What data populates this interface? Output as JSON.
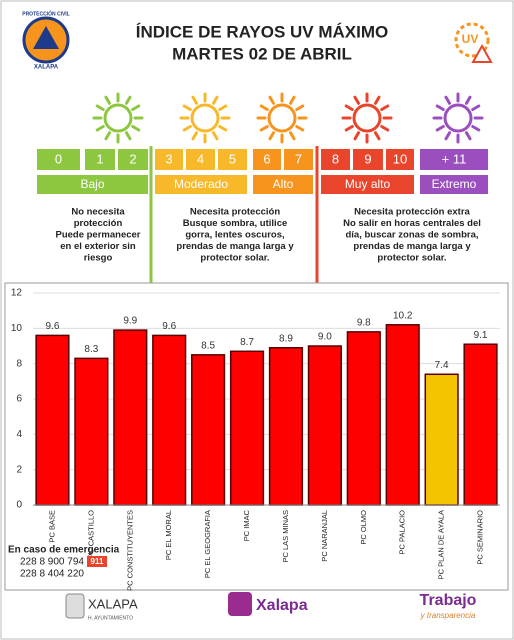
{
  "header": {
    "logo_top": "PROTECCIÓN CIVIL",
    "logo_bottom": "XALAPA",
    "title": "ÍNDICE DE RAYOS UV MÁXIMO",
    "subtitle": "MARTES 02 DE ABRIL",
    "badge": "UV"
  },
  "scale": {
    "levels": [
      {
        "name": "Bajo",
        "color": "#8dc63f",
        "steps": [
          "0",
          "1",
          "2"
        ]
      },
      {
        "name": "Moderado",
        "color": "#f7b82a",
        "steps": [
          "3",
          "4",
          "5"
        ]
      },
      {
        "name": "Alto",
        "color": "#f7941d",
        "steps": [
          "6",
          "7"
        ]
      },
      {
        "name": "Muy alto",
        "color": "#e8452c",
        "steps": [
          "8",
          "9",
          "10"
        ]
      },
      {
        "name": "Extremo",
        "color": "#9b4fbf",
        "steps": [
          "+ 11"
        ]
      }
    ]
  },
  "advice": [
    [
      "No necesita",
      "protección",
      "Puede permanecer",
      "en el exterior sin",
      "riesgo"
    ],
    [
      "Necesita protección",
      "Busque sombra, utilice",
      "gorra, lentes oscuros,",
      "prendas de manga larga y",
      "protector solar."
    ],
    [
      "Necesita protección extra",
      "No salir en horas centrales del",
      "día, buscar zonas de sombra,",
      "prendas de manga larga y",
      "protector solar."
    ]
  ],
  "chart_data": {
    "type": "bar",
    "categories": [
      "PC BASE",
      "PC CASTILLO",
      "PC CONSTITUYENTES",
      "PC EL MORAL",
      "PC EL GEOGRAFIA",
      "PC IMAC",
      "PC LAS MINAS",
      "PC NARANJAL",
      "PC OLMO",
      "PC PALACIO",
      "PC PLAN DE AYALA",
      "PC SEMINARIO"
    ],
    "values": [
      9.6,
      8.3,
      9.9,
      9.6,
      8.5,
      8.7,
      8.9,
      9.0,
      9.8,
      10.2,
      7.4,
      9.1
    ],
    "value_labels": [
      "9.6",
      "8.3",
      "9.9",
      "9.6",
      "8.5",
      "8.7",
      "8.9",
      "9.0",
      "9.8",
      "10.2",
      "7.4",
      "9.1"
    ],
    "colors": [
      "#ff0000",
      "#ff0000",
      "#ff0000",
      "#ff0000",
      "#ff0000",
      "#ff0000",
      "#ff0000",
      "#ff0000",
      "#ff0000",
      "#ff0000",
      "#f5c400",
      "#ff0000"
    ],
    "ylim": [
      0,
      12
    ],
    "yticks": [
      0,
      2,
      4,
      6,
      8,
      10,
      12
    ],
    "grid": true
  },
  "emergency": {
    "title": "En caso de emergencia",
    "phones": [
      "228 8 900 794",
      "228 8 404 220"
    ],
    "badge": "911"
  },
  "footer": {
    "left": "XALAPA",
    "left_sub": "H. AYUNTAMIENTO",
    "center": "Xalapa",
    "right": "Trabajo",
    "right_sub": "y transparencia"
  }
}
